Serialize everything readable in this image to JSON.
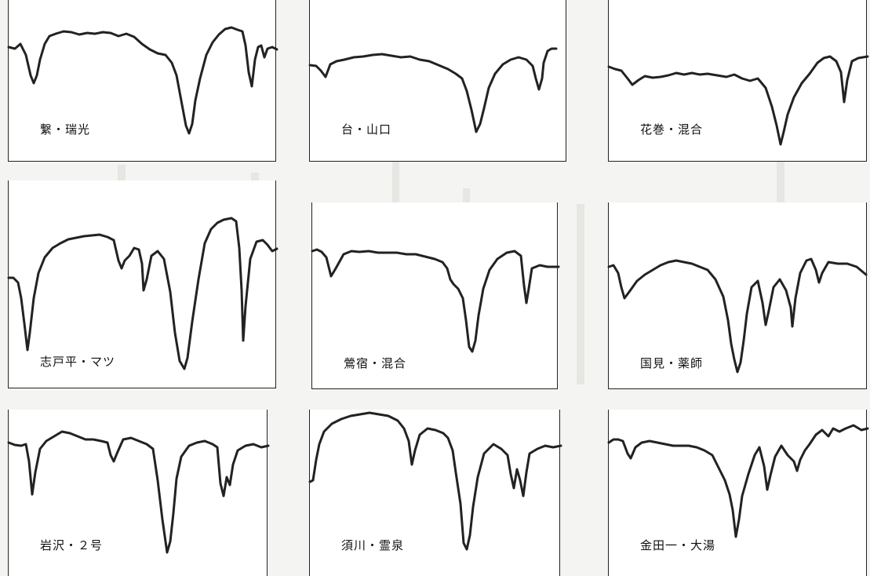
{
  "chart_data": [
    {
      "type": "line",
      "title": "繋・瑞光"
    },
    {
      "type": "line",
      "title": "台・山口"
    },
    {
      "type": "line",
      "title": "花巻・混合"
    },
    {
      "type": "line",
      "title": "志戸平・マツ"
    },
    {
      "type": "line",
      "title": "鶯宿・混合"
    },
    {
      "type": "line",
      "title": "国見・薬師"
    },
    {
      "type": "line",
      "title": "岩沢・２号"
    },
    {
      "type": "line",
      "title": "須川・霊泉"
    },
    {
      "type": "line",
      "title": "金田一・大湯"
    }
  ],
  "style": {
    "line_color": "#222222",
    "panel_bg": "#ffffff",
    "page_bg": "#f4f4f2"
  }
}
